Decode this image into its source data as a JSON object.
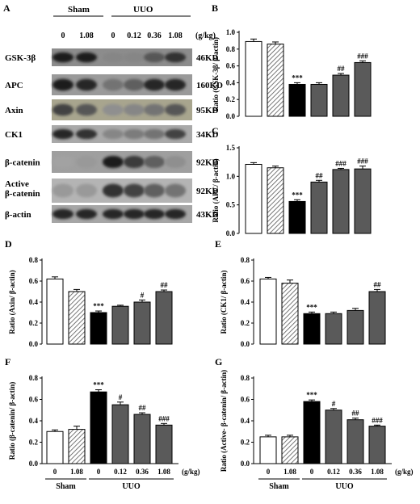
{
  "blot": {
    "panel_letter": "A",
    "group_sham": "Sham",
    "group_uuo": "UUO",
    "doses": [
      "0",
      "1.08",
      "0",
      "0.12",
      "0.36",
      "1.08"
    ],
    "unit": "(g/kg)",
    "rows": [
      {
        "label": [
          "GSK-3β"
        ],
        "size": "46KD"
      },
      {
        "label": [
          "APC"
        ],
        "size": "160KD"
      },
      {
        "label": [
          "Axin"
        ],
        "size": "95KD"
      },
      {
        "label": [
          "CK1"
        ],
        "size": "34KD"
      },
      {
        "label": [
          "β-catenin"
        ],
        "size": "92KD"
      },
      {
        "label": [
          "Active",
          "β-catenin"
        ],
        "size": "92KD"
      },
      {
        "label": [
          "β-actin"
        ],
        "size": "43KD"
      }
    ]
  },
  "colors": {
    "sham_control": "#ffffff",
    "sham_drug": "hatched",
    "uuo_control": "#000000",
    "uuo_drug": "#5a5a5a"
  },
  "chart_data": [
    {
      "panel": "B",
      "type": "bar",
      "ylabel": "Ratio (GSK-3β/ β-actin)",
      "ylim": [
        0,
        1.0
      ],
      "yticks": [
        "0.0",
        "0.2",
        "0.4",
        "0.6",
        "0.8",
        "1.0"
      ],
      "values": [
        0.89,
        0.86,
        0.38,
        0.38,
        0.49,
        0.64
      ],
      "errors": [
        0.03,
        0.025,
        0.02,
        0.02,
        0.02,
        0.02
      ],
      "annotations": [
        "",
        "",
        "***",
        "",
        "##",
        "###"
      ],
      "show_xaxis": false
    },
    {
      "panel": "C",
      "type": "bar",
      "ylabel": "Ratio (APC/ β-actin)",
      "ylim": [
        0,
        1.5
      ],
      "yticks": [
        "0.0",
        "0.5",
        "1.0",
        "1.5"
      ],
      "values": [
        1.21,
        1.15,
        0.56,
        0.9,
        1.12,
        1.13
      ],
      "errors": [
        0.03,
        0.03,
        0.03,
        0.03,
        0.02,
        0.05
      ],
      "annotations": [
        "",
        "",
        "***",
        "##",
        "###",
        "###"
      ],
      "show_xaxis": false
    },
    {
      "panel": "D",
      "type": "bar",
      "ylabel": "Ratio (Axin/ β-actin)",
      "ylim": [
        0,
        0.8
      ],
      "yticks": [
        "0.0",
        "0.2",
        "0.4",
        "0.6",
        "0.8"
      ],
      "values": [
        0.62,
        0.5,
        0.3,
        0.36,
        0.4,
        0.5
      ],
      "errors": [
        0.02,
        0.02,
        0.015,
        0.01,
        0.02,
        0.015
      ],
      "annotations": [
        "",
        "",
        "***",
        "",
        "#",
        "##"
      ],
      "show_xaxis": false
    },
    {
      "panel": "E",
      "type": "bar",
      "ylabel": "Ratio (CK1/ β-actin)",
      "ylim": [
        0,
        0.8
      ],
      "yticks": [
        "0.0",
        "0.2",
        "0.4",
        "0.6",
        "0.8"
      ],
      "values": [
        0.62,
        0.58,
        0.29,
        0.29,
        0.32,
        0.5
      ],
      "errors": [
        0.015,
        0.03,
        0.015,
        0.015,
        0.02,
        0.02
      ],
      "annotations": [
        "",
        "",
        "***",
        "",
        "",
        "##"
      ],
      "show_xaxis": false
    },
    {
      "panel": "F",
      "type": "bar",
      "ylabel": "Ratio (β-catenin/ β-actin)",
      "ylim": [
        0,
        0.8
      ],
      "yticks": [
        "0.0",
        "0.2",
        "0.4",
        "0.6",
        "0.8"
      ],
      "values": [
        0.3,
        0.32,
        0.67,
        0.55,
        0.46,
        0.36
      ],
      "errors": [
        0.015,
        0.03,
        0.02,
        0.025,
        0.015,
        0.015
      ],
      "annotations": [
        "",
        "",
        "***",
        "#",
        "##",
        "###"
      ],
      "show_xaxis": true,
      "xticks": [
        "0",
        "1.08",
        "0",
        "0.12",
        "0.36",
        "1.08"
      ],
      "xunit": "(g/kg)",
      "groups": [
        "Sham",
        "UUO"
      ]
    },
    {
      "panel": "G",
      "type": "bar",
      "ylabel": "Ratio (Active- β-catenin/ β-actin)",
      "ylim": [
        0,
        0.8
      ],
      "yticks": [
        "0.0",
        "0.2",
        "0.4",
        "0.6",
        "0.8"
      ],
      "values": [
        0.25,
        0.25,
        0.58,
        0.5,
        0.41,
        0.35
      ],
      "errors": [
        0.015,
        0.015,
        0.015,
        0.015,
        0.015,
        0.01
      ],
      "annotations": [
        "",
        "",
        "***",
        "#",
        "##",
        "###"
      ],
      "show_xaxis": true,
      "xticks": [
        "0",
        "1.08",
        "0",
        "0.12",
        "0.36",
        "1.08"
      ],
      "xunit": "(g/kg)",
      "groups": [
        "Sham",
        "UUO"
      ]
    }
  ]
}
